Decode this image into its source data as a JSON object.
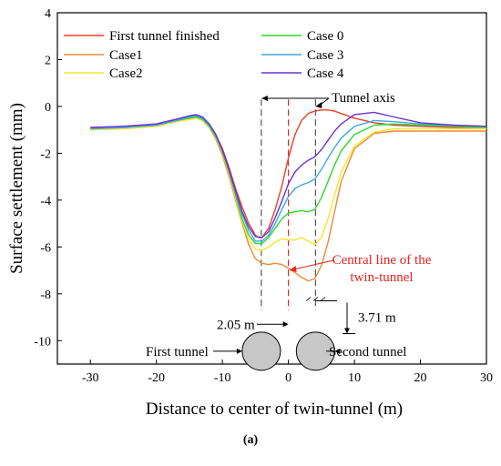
{
  "chart_data": {
    "type": "line",
    "xlabel": "Distance to center of twin-tunnel (m)",
    "ylabel": "Surface settlement (mm)",
    "xlim": [
      -35,
      30
    ],
    "ylim": [
      -11,
      4
    ],
    "xticks": [
      -30,
      -20,
      -10,
      0,
      10,
      20,
      30
    ],
    "yticks": [
      4,
      2,
      0,
      -2,
      -4,
      -6,
      -8,
      -10
    ],
    "grid": false,
    "legend_position": "top",
    "series": [
      {
        "name": "First tunnel finished",
        "color": "#e8402a",
        "x": [
          -30,
          -25,
          -20,
          -17,
          -15,
          -14,
          -13,
          -12,
          -11,
          -10,
          -9,
          -8,
          -7,
          -6,
          -5,
          -4.5,
          -4,
          -3,
          -2,
          -1,
          0,
          1,
          2,
          3,
          4,
          5,
          6,
          7,
          8,
          10,
          13,
          16,
          20,
          25,
          30
        ],
        "y": [
          -0.9,
          -0.85,
          -0.75,
          -0.55,
          -0.45,
          -0.4,
          -0.5,
          -0.75,
          -1.2,
          -1.8,
          -2.6,
          -3.5,
          -4.3,
          -5,
          -5.5,
          -5.6,
          -5.6,
          -5.2,
          -4.4,
          -3.4,
          -2.2,
          -1.2,
          -0.6,
          -0.3,
          -0.2,
          -0.15,
          -0.15,
          -0.2,
          -0.3,
          -0.5,
          -0.7,
          -0.8,
          -0.85,
          -0.9,
          -0.9
        ]
      },
      {
        "name": "Case1",
        "color": "#ef8a33",
        "x": [
          -30,
          -25,
          -20,
          -17,
          -15,
          -14,
          -13,
          -12,
          -11,
          -10,
          -9,
          -8,
          -7,
          -6,
          -5,
          -4,
          -3,
          -2,
          -1,
          0,
          1,
          2,
          3,
          4,
          5,
          6,
          7,
          8,
          10,
          13,
          16,
          20,
          25,
          30
        ],
        "y": [
          -1,
          -0.95,
          -0.85,
          -0.65,
          -0.55,
          -0.5,
          -0.6,
          -0.9,
          -1.4,
          -2.1,
          -3,
          -4,
          -5,
          -5.9,
          -6.5,
          -6.7,
          -6.75,
          -6.7,
          -6.75,
          -6.9,
          -7.1,
          -7.3,
          -7.45,
          -7.35,
          -6.8,
          -5.8,
          -4.5,
          -3.2,
          -1.8,
          -1.15,
          -1.05,
          -1.05,
          -1.05,
          -1.05
        ]
      },
      {
        "name": "Case2",
        "color": "#f4e82c",
        "x": [
          -30,
          -25,
          -20,
          -17,
          -15,
          -14,
          -13,
          -12,
          -11,
          -10,
          -9,
          -8,
          -7,
          -6,
          -5,
          -4,
          -3,
          -2,
          -1,
          0,
          1,
          2,
          3,
          4,
          5,
          6,
          7,
          8,
          10,
          13,
          16,
          20,
          25,
          30
        ],
        "y": [
          -1,
          -0.95,
          -0.85,
          -0.65,
          -0.55,
          -0.5,
          -0.6,
          -0.9,
          -1.35,
          -2,
          -2.9,
          -3.9,
          -4.9,
          -5.7,
          -6.1,
          -6.15,
          -6,
          -5.8,
          -5.65,
          -5.7,
          -5.7,
          -5.6,
          -5.75,
          -5.9,
          -5.6,
          -4.8,
          -3.8,
          -2.8,
          -1.7,
          -1.1,
          -0.95,
          -0.95,
          -0.95,
          -0.95
        ]
      },
      {
        "name": "Case 0",
        "color": "#2fd62f",
        "x": [
          -30,
          -25,
          -20,
          -17,
          -15,
          -14,
          -13,
          -12,
          -11,
          -10,
          -9,
          -8,
          -7,
          -6,
          -5,
          -4,
          -3,
          -2,
          -1,
          0,
          1,
          2,
          3,
          4,
          5,
          6,
          7,
          8,
          10,
          13,
          16,
          20,
          25,
          30
        ],
        "y": [
          -0.95,
          -0.9,
          -0.8,
          -0.6,
          -0.5,
          -0.45,
          -0.55,
          -0.85,
          -1.3,
          -1.95,
          -2.8,
          -3.8,
          -4.8,
          -5.5,
          -5.85,
          -5.85,
          -5.6,
          -5.2,
          -4.8,
          -4.55,
          -4.5,
          -4.45,
          -4.5,
          -4.4,
          -3.9,
          -3.2,
          -2.5,
          -1.9,
          -1.2,
          -0.8,
          -0.75,
          -0.8,
          -0.85,
          -0.9
        ]
      },
      {
        "name": "Case 3",
        "color": "#3fa7e6",
        "x": [
          -30,
          -25,
          -20,
          -17,
          -15,
          -14,
          -13,
          -12,
          -11,
          -10,
          -9,
          -8,
          -7,
          -6,
          -5,
          -4,
          -3,
          -2,
          -1,
          0,
          1,
          2,
          3,
          4,
          5,
          6,
          7,
          8,
          10,
          13,
          16,
          20,
          25,
          30
        ],
        "y": [
          -0.95,
          -0.9,
          -0.8,
          -0.6,
          -0.45,
          -0.4,
          -0.5,
          -0.8,
          -1.25,
          -1.9,
          -2.75,
          -3.7,
          -4.6,
          -5.3,
          -5.75,
          -5.75,
          -5.5,
          -5,
          -4.4,
          -3.85,
          -3.5,
          -3.35,
          -3.25,
          -3.1,
          -2.7,
          -2.2,
          -1.75,
          -1.35,
          -0.85,
          -0.6,
          -0.65,
          -0.75,
          -0.8,
          -0.85
        ]
      },
      {
        "name": "Case 4",
        "color": "#6a32d6",
        "x": [
          -30,
          -25,
          -20,
          -17,
          -15,
          -14,
          -13,
          -12,
          -11,
          -10,
          -9,
          -8,
          -7,
          -6,
          -5,
          -4,
          -3,
          -2,
          -1,
          0,
          1,
          2,
          3,
          4,
          5,
          6,
          7,
          8,
          10,
          13,
          16,
          20,
          25,
          30
        ],
        "y": [
          -0.9,
          -0.85,
          -0.75,
          -0.55,
          -0.4,
          -0.35,
          -0.45,
          -0.75,
          -1.2,
          -1.85,
          -2.7,
          -3.6,
          -4.5,
          -5.15,
          -5.55,
          -5.6,
          -5.35,
          -4.75,
          -4.05,
          -3.3,
          -2.8,
          -2.5,
          -2.3,
          -2.15,
          -1.85,
          -1.45,
          -1.05,
          -0.75,
          -0.35,
          -0.25,
          -0.45,
          -0.7,
          -0.8,
          -0.85
        ]
      }
    ],
    "annotations": {
      "tunnel_axis": "Tunnel axis",
      "central_line": "Central line of the twin-tunnel",
      "offset": "2.05 m",
      "depth": "3.71 m",
      "first_tunnel": "First tunnel",
      "second_tunnel": "Second tunnel",
      "tunnel_axis_x": [
        -4.1,
        4.1
      ],
      "central_line_x": 0
    }
  },
  "caption": "(a)"
}
